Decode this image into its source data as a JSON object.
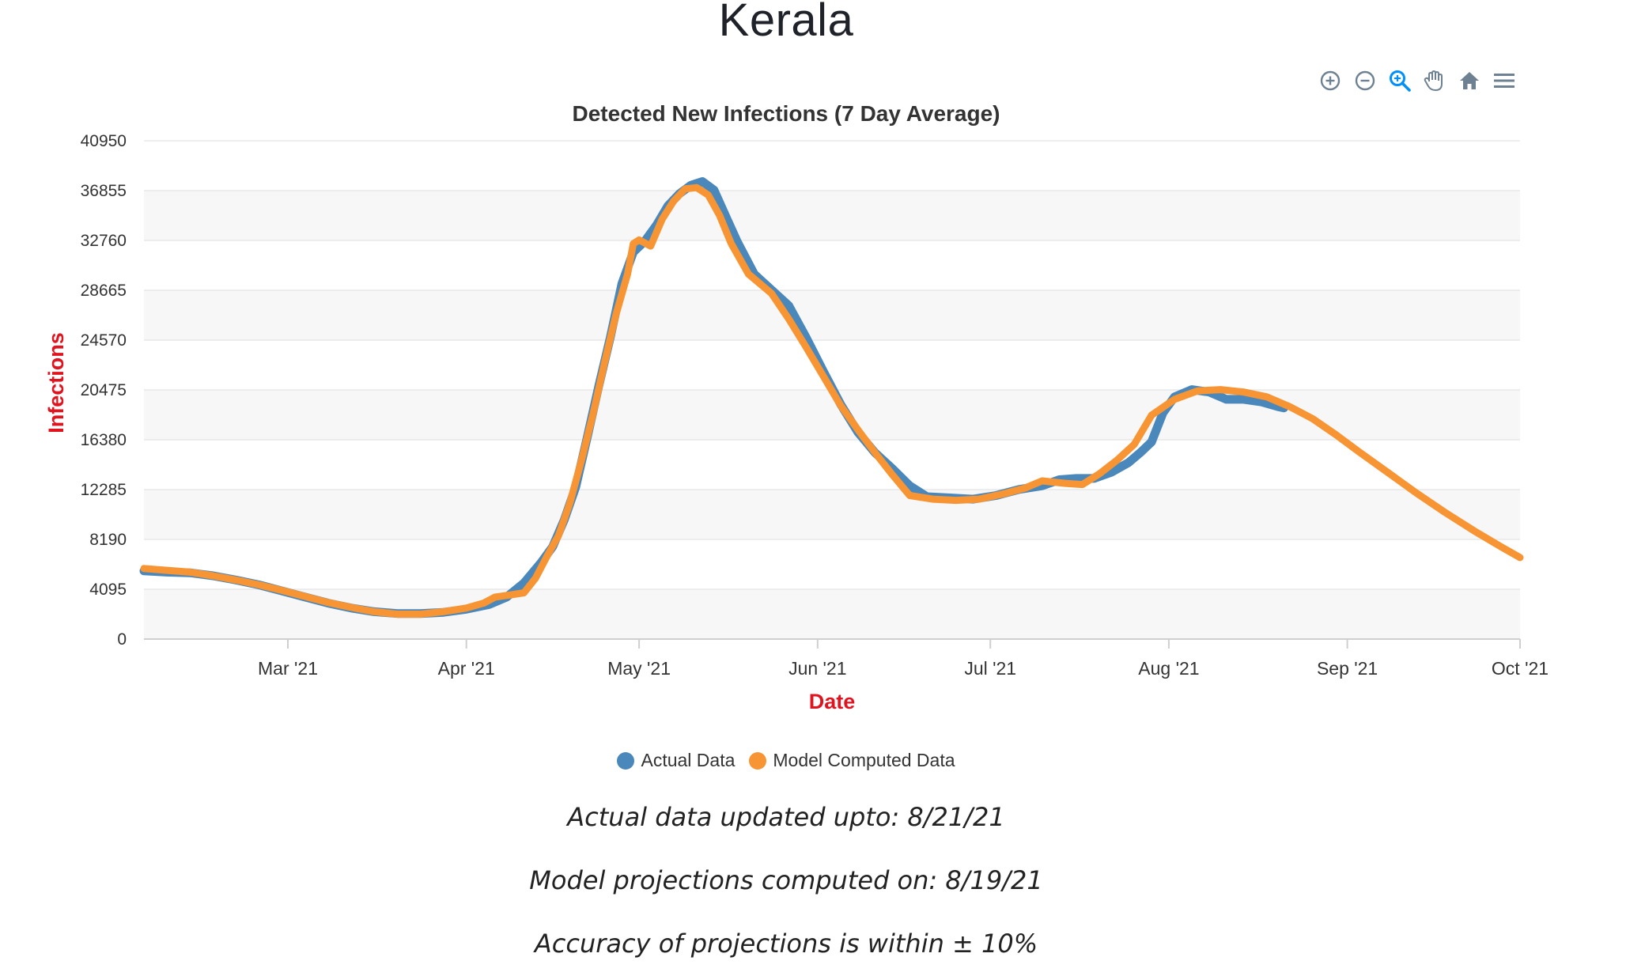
{
  "page": {
    "title": "Kerala"
  },
  "toolbar": {
    "icons": [
      "zoom-in-icon",
      "zoom-out-icon",
      "selection-zoom-icon",
      "pan-hand-icon",
      "home-reset-icon",
      "menu-icon"
    ]
  },
  "colors": {
    "actual": "#4a87ba",
    "model": "#f79433",
    "axis_label": "#e0131f",
    "grid_band": "#f7f7f7",
    "grid_line": "#e4e4e4",
    "toolbar_icon": "#6e8192",
    "toolbar_active": "#008ffb"
  },
  "chart_data": {
    "type": "line",
    "title": "Detected New Infections (7 Day Average)",
    "xlabel": "Date",
    "ylabel": "Infections",
    "ylim": [
      0,
      40950
    ],
    "yticks": [
      "0",
      "4095",
      "8190",
      "12285",
      "16380",
      "20475",
      "24570",
      "28665",
      "32760",
      "36855",
      "40950"
    ],
    "xlim": [
      "2021-02-04",
      "2021-10-01"
    ],
    "xticks": [
      {
        "date": "2021-03-01",
        "label": "Mar '21"
      },
      {
        "date": "2021-04-01",
        "label": "Apr '21"
      },
      {
        "date": "2021-05-01",
        "label": "May '21"
      },
      {
        "date": "2021-06-01",
        "label": "Jun '21"
      },
      {
        "date": "2021-07-01",
        "label": "Jul '21"
      },
      {
        "date": "2021-08-01",
        "label": "Aug '21"
      },
      {
        "date": "2021-09-01",
        "label": "Sep '21"
      },
      {
        "date": "2021-10-01",
        "label": "Oct '21"
      }
    ],
    "grid": true,
    "legend_position": "bottom",
    "series": [
      {
        "name": "Actual Data",
        "color": "#4a87ba",
        "points": [
          [
            "2021-02-04",
            5600
          ],
          [
            "2021-02-08",
            5500
          ],
          [
            "2021-02-12",
            5450
          ],
          [
            "2021-02-16",
            5200
          ],
          [
            "2021-02-20",
            4850
          ],
          [
            "2021-02-24",
            4450
          ],
          [
            "2021-02-28",
            3950
          ],
          [
            "2021-03-04",
            3450
          ],
          [
            "2021-03-08",
            2950
          ],
          [
            "2021-03-12",
            2550
          ],
          [
            "2021-03-16",
            2250
          ],
          [
            "2021-03-20",
            2100
          ],
          [
            "2021-03-24",
            2100
          ],
          [
            "2021-03-28",
            2200
          ],
          [
            "2021-04-01",
            2450
          ],
          [
            "2021-04-05",
            2850
          ],
          [
            "2021-04-08",
            3450
          ],
          [
            "2021-04-11",
            4600
          ],
          [
            "2021-04-14",
            6300
          ],
          [
            "2021-04-16",
            7600
          ],
          [
            "2021-04-18",
            9800
          ],
          [
            "2021-04-20",
            12500
          ],
          [
            "2021-04-22",
            16600
          ],
          [
            "2021-04-24",
            20800
          ],
          [
            "2021-04-26",
            24800
          ],
          [
            "2021-04-28",
            29200
          ],
          [
            "2021-04-30",
            31800
          ],
          [
            "2021-05-02",
            32700
          ],
          [
            "2021-05-04",
            34000
          ],
          [
            "2021-05-06",
            35600
          ],
          [
            "2021-05-08",
            36600
          ],
          [
            "2021-05-10",
            37300
          ],
          [
            "2021-05-12",
            37600
          ],
          [
            "2021-05-14",
            36900
          ],
          [
            "2021-05-16",
            34800
          ],
          [
            "2021-05-18",
            32700
          ],
          [
            "2021-05-21",
            30000
          ],
          [
            "2021-05-24",
            28700
          ],
          [
            "2021-05-27",
            27400
          ],
          [
            "2021-05-30",
            24800
          ],
          [
            "2021-06-02",
            22000
          ],
          [
            "2021-06-05",
            19300
          ],
          [
            "2021-06-08",
            17000
          ],
          [
            "2021-06-11",
            15300
          ],
          [
            "2021-06-14",
            14000
          ],
          [
            "2021-06-17",
            12600
          ],
          [
            "2021-06-20",
            11700
          ],
          [
            "2021-06-24",
            11600
          ],
          [
            "2021-06-28",
            11500
          ],
          [
            "2021-07-02",
            11800
          ],
          [
            "2021-07-06",
            12300
          ],
          [
            "2021-07-10",
            12600
          ],
          [
            "2021-07-13",
            13100
          ],
          [
            "2021-07-16",
            13200
          ],
          [
            "2021-07-19",
            13200
          ],
          [
            "2021-07-22",
            13700
          ],
          [
            "2021-07-25",
            14500
          ],
          [
            "2021-07-27",
            15300
          ],
          [
            "2021-07-29",
            16200
          ],
          [
            "2021-07-31",
            18600
          ],
          [
            "2021-08-02",
            19900
          ],
          [
            "2021-08-05",
            20500
          ],
          [
            "2021-08-08",
            20300
          ],
          [
            "2021-08-11",
            19700
          ],
          [
            "2021-08-14",
            19700
          ],
          [
            "2021-08-17",
            19500
          ],
          [
            "2021-08-20",
            19100
          ],
          [
            "2021-08-21",
            19000
          ]
        ]
      },
      {
        "name": "Model Computed Data",
        "color": "#f79433",
        "points": [
          [
            "2021-02-04",
            5800
          ],
          [
            "2021-02-08",
            5650
          ],
          [
            "2021-02-12",
            5500
          ],
          [
            "2021-02-16",
            5200
          ],
          [
            "2021-02-20",
            4850
          ],
          [
            "2021-02-24",
            4450
          ],
          [
            "2021-02-28",
            4000
          ],
          [
            "2021-03-04",
            3500
          ],
          [
            "2021-03-08",
            3000
          ],
          [
            "2021-03-12",
            2600
          ],
          [
            "2021-03-16",
            2250
          ],
          [
            "2021-03-20",
            2050
          ],
          [
            "2021-03-24",
            2050
          ],
          [
            "2021-03-28",
            2250
          ],
          [
            "2021-04-01",
            2550
          ],
          [
            "2021-04-04",
            2950
          ],
          [
            "2021-04-06",
            3450
          ],
          [
            "2021-04-09",
            3650
          ],
          [
            "2021-04-11",
            3800
          ],
          [
            "2021-04-13",
            5000
          ],
          [
            "2021-04-15",
            6800
          ],
          [
            "2021-04-17",
            8500
          ],
          [
            "2021-04-19",
            11200
          ],
          [
            "2021-04-21",
            14700
          ],
          [
            "2021-04-23",
            18500
          ],
          [
            "2021-04-25",
            22700
          ],
          [
            "2021-04-27",
            26700
          ],
          [
            "2021-04-29",
            30000
          ],
          [
            "2021-04-30",
            32500
          ],
          [
            "2021-05-01",
            32800
          ],
          [
            "2021-05-03",
            32300
          ],
          [
            "2021-05-05",
            34500
          ],
          [
            "2021-05-07",
            36000
          ],
          [
            "2021-05-09",
            37000
          ],
          [
            "2021-05-11",
            37100
          ],
          [
            "2021-05-13",
            36500
          ],
          [
            "2021-05-15",
            34800
          ],
          [
            "2021-05-17",
            32500
          ],
          [
            "2021-05-20",
            30000
          ],
          [
            "2021-05-24",
            28400
          ],
          [
            "2021-05-27",
            26300
          ],
          [
            "2021-05-30",
            24000
          ],
          [
            "2021-06-02",
            21600
          ],
          [
            "2021-06-05",
            19200
          ],
          [
            "2021-06-08",
            17200
          ],
          [
            "2021-06-11",
            15300
          ],
          [
            "2021-06-14",
            13500
          ],
          [
            "2021-06-17",
            11800
          ],
          [
            "2021-06-21",
            11500
          ],
          [
            "2021-06-25",
            11400
          ],
          [
            "2021-06-29",
            11500
          ],
          [
            "2021-07-03",
            11900
          ],
          [
            "2021-07-07",
            12400
          ],
          [
            "2021-07-10",
            13000
          ],
          [
            "2021-07-14",
            12800
          ],
          [
            "2021-07-17",
            12700
          ],
          [
            "2021-07-20",
            13600
          ],
          [
            "2021-07-23",
            14700
          ],
          [
            "2021-07-26",
            16000
          ],
          [
            "2021-07-29",
            18400
          ],
          [
            "2021-08-02",
            19700
          ],
          [
            "2021-08-06",
            20400
          ],
          [
            "2021-08-10",
            20500
          ],
          [
            "2021-08-14",
            20300
          ],
          [
            "2021-08-18",
            19900
          ],
          [
            "2021-08-22",
            19100
          ],
          [
            "2021-08-26",
            18100
          ],
          [
            "2021-08-30",
            16800
          ],
          [
            "2021-09-03",
            15400
          ],
          [
            "2021-09-08",
            13700
          ],
          [
            "2021-09-13",
            12000
          ],
          [
            "2021-09-18",
            10400
          ],
          [
            "2021-09-23",
            8900
          ],
          [
            "2021-09-28",
            7500
          ],
          [
            "2021-10-01",
            6700
          ]
        ]
      }
    ]
  },
  "legend": {
    "actual_label": "Actual Data",
    "model_label": "Model Computed Data"
  },
  "notes": {
    "updated": "Actual data updated upto: 8/21/21",
    "computed": "Model projections computed on: 8/19/21",
    "accuracy": "Accuracy of projections is within ± 10%"
  }
}
